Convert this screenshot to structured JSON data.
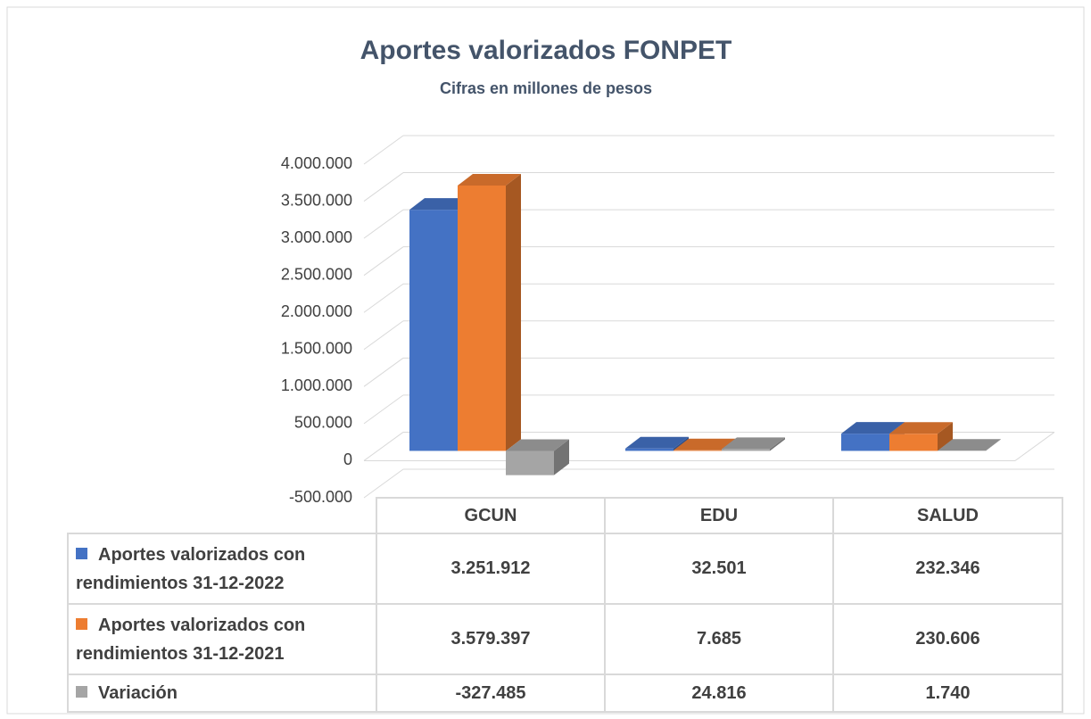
{
  "chart_data": {
    "type": "bar3d",
    "title": "Aportes valorizados FONPET",
    "subtitle": "Cifras en millones de pesos",
    "categories": [
      "GCUN",
      "EDU",
      "SALUD"
    ],
    "series": [
      {
        "name": "Aportes valorizados con rendimientos 31-12-2022",
        "color": "#4472c4",
        "values": [
          3251912,
          32501,
          232346
        ],
        "value_labels": [
          "3.251.912",
          "32.501",
          "232.346"
        ]
      },
      {
        "name": "Aportes valorizados con rendimientos 31-12-2021",
        "color": "#ed7d31",
        "values": [
          3579397,
          7685,
          230606
        ],
        "value_labels": [
          "3.579.397",
          "7.685",
          "230.606"
        ]
      },
      {
        "name": "Variación",
        "color": "#a5a5a5",
        "values": [
          -327485,
          24816,
          1740
        ],
        "value_labels": [
          "-327.485",
          "24.816",
          "1.740"
        ]
      }
    ],
    "ylim": [
      -500000,
      4000000
    ],
    "yticks": [
      {
        "value": -500000,
        "label": "-500.000"
      },
      0,
      {
        "value": 500000,
        "label": "500.000"
      },
      {
        "value": 1000000,
        "label": "1.000.000"
      },
      {
        "value": 1500000,
        "label": "1.500.000"
      },
      {
        "value": 2000000,
        "label": "2.000.000"
      },
      {
        "value": 2500000,
        "label": "2.500.000"
      },
      {
        "value": 3000000,
        "label": "3.000.000"
      },
      {
        "value": 3500000,
        "label": "3.500.000"
      },
      {
        "value": 4000000,
        "label": "4.000.000"
      }
    ],
    "grid": true
  }
}
